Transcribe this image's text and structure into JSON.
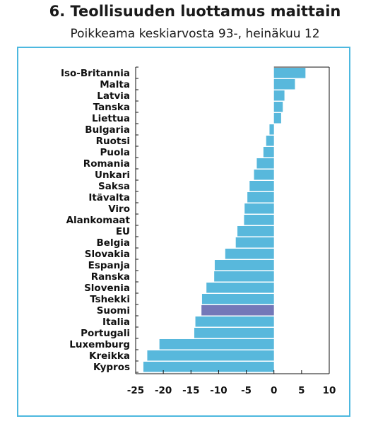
{
  "header": {
    "title": "6. Teollisuuden luottamus maittain",
    "subtitle": "Poikkeama keskiarvosta 93-, heinäkuu 12"
  },
  "colors": {
    "bar": "#58b8dc",
    "highlight": "#7478b8",
    "frame": "#4db8df",
    "axis": "#111111"
  },
  "chart_data": {
    "type": "bar",
    "orientation": "horizontal",
    "title": "6. Teollisuuden luottamus maittain",
    "subtitle": "Poikkeama keskiarvosta 93-, heinäkuu 12",
    "xlabel": "",
    "ylabel": "",
    "xlim": [
      -25,
      10
    ],
    "xticks": [
      -25,
      -20,
      -15,
      -10,
      -5,
      0,
      5,
      10
    ],
    "grid": false,
    "highlight_category": "Suomi",
    "categories": [
      "Iso-Britannia",
      "Malta",
      "Latvia",
      "Tanska",
      "Liettua",
      "Bulgaria",
      "Ruotsi",
      "Puola",
      "Romania",
      "Unkari",
      "Saksa",
      "Itävalta",
      "Viro",
      "Alankomaat",
      "EU",
      "Belgia",
      "Slovakia",
      "Espanja",
      "Ranska",
      "Slovenia",
      "Tshekki",
      "Suomi",
      "Italia",
      "Portugali",
      "Luxemburg",
      "Kreikka",
      "Kypros"
    ],
    "values": [
      5.7,
      3.8,
      1.9,
      1.6,
      1.3,
      -0.8,
      -1.4,
      -1.9,
      -3.1,
      -3.6,
      -4.4,
      -4.8,
      -5.3,
      -5.4,
      -6.6,
      -6.9,
      -8.8,
      -10.7,
      -10.8,
      -12.2,
      -13.0,
      -13.1,
      -14.2,
      -14.4,
      -20.7,
      -22.9,
      -23.6
    ]
  }
}
